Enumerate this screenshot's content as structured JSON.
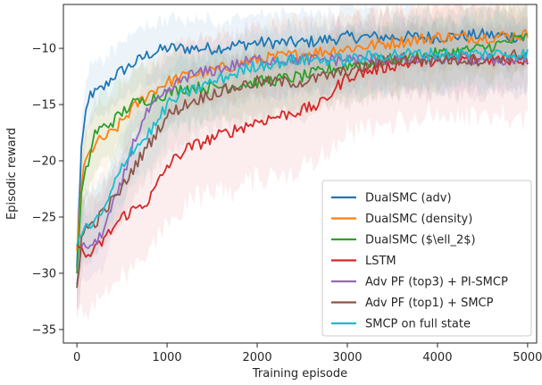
{
  "chart_data": {
    "type": "line",
    "title": "",
    "xlabel": "Training episode",
    "ylabel": "Episodic reward",
    "xlim": [
      -150,
      5100
    ],
    "ylim": [
      -36.2,
      -6.1
    ],
    "xticks": [
      0,
      1000,
      2000,
      3000,
      4000,
      5000
    ],
    "yticks": [
      -35,
      -30,
      -25,
      -20,
      -15,
      -10
    ],
    "grid": false,
    "legend_position": "lower-right",
    "shaded_bands": true,
    "series": [
      {
        "name": "DualSMC (adv)",
        "color": "#1f77b4",
        "x": [
          0,
          50,
          100,
          150,
          200,
          300,
          400,
          500,
          600,
          700,
          800,
          1000,
          1200,
          1500,
          2000,
          2500,
          3000,
          3500,
          4000,
          4500,
          5000
        ],
        "y": [
          -29.5,
          -18.5,
          -16.0,
          -14.0,
          -14.0,
          -13.5,
          -12.5,
          -12.0,
          -11.5,
          -11.0,
          -10.5,
          -10.0,
          -10.0,
          -10.0,
          -9.5,
          -9.5,
          -9.0,
          -9.0,
          -9.0,
          -8.8,
          -9.0
        ],
        "band": 2.5
      },
      {
        "name": "DualSMC (density)",
        "color": "#ff7f0e",
        "x": [
          0,
          50,
          100,
          200,
          300,
          400,
          600,
          800,
          1000,
          1200,
          1500,
          2000,
          2500,
          3000,
          3500,
          4000,
          4500,
          5000
        ],
        "y": [
          -28.0,
          -22.0,
          -20.0,
          -18.5,
          -18.0,
          -17.5,
          -15.5,
          -14.0,
          -13.0,
          -12.5,
          -12.0,
          -11.0,
          -10.5,
          -10.0,
          -9.5,
          -9.0,
          -9.0,
          -8.8
        ],
        "band": 3.0
      },
      {
        "name": "DualSMC ($\\ell_2$)",
        "color": "#2ca02c",
        "x": [
          0,
          50,
          100,
          200,
          300,
          400,
          600,
          800,
          1000,
          1200,
          1500,
          2000,
          2500,
          3000,
          3500,
          4000,
          4500,
          5000
        ],
        "y": [
          -30.0,
          -23.0,
          -21.0,
          -17.5,
          -17.0,
          -16.5,
          -15.0,
          -14.5,
          -14.0,
          -13.5,
          -13.5,
          -13.0,
          -12.5,
          -11.5,
          -11.0,
          -10.5,
          -10.0,
          -9.0
        ],
        "band": 3.0
      },
      {
        "name": "LSTM",
        "color": "#d62728",
        "x": [
          0,
          50,
          100,
          200,
          300,
          400,
          500,
          600,
          800,
          1000,
          1200,
          1500,
          2000,
          2500,
          2700,
          3000,
          3500,
          4000,
          4500,
          5000
        ],
        "y": [
          -27.5,
          -28.0,
          -28.5,
          -28.0,
          -27.0,
          -26.0,
          -25.0,
          -24.5,
          -23.5,
          -20.5,
          -19.0,
          -18.0,
          -16.5,
          -15.5,
          -15.0,
          -12.5,
          -11.5,
          -11.0,
          -11.0,
          -11.0
        ],
        "band": 5.0
      },
      {
        "name": "Adv PF (top3) + PI-SMCP",
        "color": "#9467bd",
        "x": [
          0,
          50,
          100,
          200,
          300,
          400,
          500,
          600,
          700,
          800,
          1000,
          1200,
          1500,
          2000,
          2500,
          3000,
          3500,
          4000,
          4500,
          5000
        ],
        "y": [
          -31.0,
          -28.0,
          -27.5,
          -27.5,
          -26.0,
          -24.0,
          -22.0,
          -19.0,
          -17.0,
          -15.5,
          -14.0,
          -12.5,
          -12.0,
          -11.0,
          -11.0,
          -11.0,
          -11.0,
          -11.0,
          -11.0,
          -11.0
        ],
        "band": 3.0
      },
      {
        "name": "Adv PF (top1) + SMCP",
        "color": "#8c564b",
        "x": [
          0,
          50,
          100,
          200,
          300,
          400,
          500,
          600,
          800,
          1000,
          1200,
          1500,
          2000,
          2500,
          3000,
          3500,
          4000,
          4500,
          5000
        ],
        "y": [
          -31.3,
          -27.0,
          -26.0,
          -25.5,
          -24.5,
          -23.5,
          -22.5,
          -21.0,
          -18.5,
          -16.0,
          -15.0,
          -14.0,
          -13.0,
          -13.0,
          -12.0,
          -11.0,
          -11.0,
          -11.0,
          -10.5
        ],
        "band": 3.0
      },
      {
        "name": "SMCP on full state",
        "color": "#17becf",
        "x": [
          0,
          50,
          100,
          200,
          300,
          400,
          500,
          600,
          700,
          800,
          900,
          1000,
          1200,
          1500,
          2000,
          2500,
          3000,
          3500,
          4000,
          4500,
          5000
        ],
        "y": [
          -27.5,
          -26.5,
          -26.0,
          -25.5,
          -24.5,
          -22.5,
          -20.5,
          -19.0,
          -18.5,
          -17.5,
          -16.5,
          -15.0,
          -14.0,
          -13.0,
          -11.5,
          -11.0,
          -11.0,
          -10.5,
          -10.5,
          -10.5,
          -10.5
        ],
        "band": 3.0
      }
    ]
  }
}
